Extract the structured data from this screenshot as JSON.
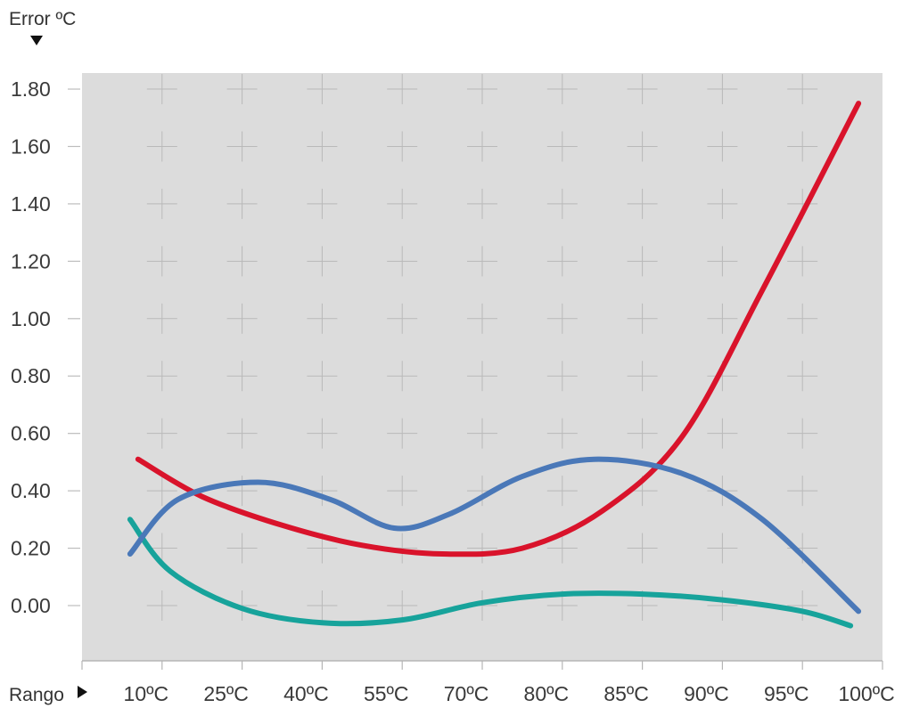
{
  "chart_data": {
    "type": "line",
    "title": "",
    "ylabel": "Error ºC",
    "xlabel": "Rango",
    "categories": [
      "10ºC",
      "25ºC",
      "40ºC",
      "55ºC",
      "70ºC",
      "80ºC",
      "85ºC",
      "90ºC",
      "95ºC",
      "100ºC"
    ],
    "yticks": [
      "1.80",
      "1.60",
      "1.40",
      "1.20",
      "1.00",
      "0.80",
      "0.60",
      "0.40",
      "0.20",
      "0.00"
    ],
    "ylim": [
      -0.2,
      1.85
    ],
    "grid": true,
    "series": [
      {
        "color": "#d9132b",
        "points": [
          [
            0.7,
            0.51
          ],
          [
            1.5,
            0.38
          ],
          [
            2.5,
            0.28
          ],
          [
            3.5,
            0.21
          ],
          [
            4.5,
            0.18
          ],
          [
            5.5,
            0.2
          ],
          [
            6.5,
            0.33
          ],
          [
            7.5,
            0.59
          ],
          [
            8.5,
            1.1
          ],
          [
            9.7,
            1.75
          ]
        ]
      },
      {
        "color": "#4a78b8",
        "points": [
          [
            0.6,
            0.18
          ],
          [
            1.2,
            0.37
          ],
          [
            2.2,
            0.43
          ],
          [
            3.1,
            0.37
          ],
          [
            3.9,
            0.27
          ],
          [
            4.6,
            0.32
          ],
          [
            5.5,
            0.45
          ],
          [
            6.4,
            0.51
          ],
          [
            7.5,
            0.46
          ],
          [
            8.5,
            0.3
          ],
          [
            9.7,
            -0.02
          ]
        ]
      },
      {
        "color": "#17a39b",
        "points": [
          [
            0.6,
            0.3
          ],
          [
            1.1,
            0.12
          ],
          [
            2.0,
            -0.01
          ],
          [
            3.0,
            -0.06
          ],
          [
            4.0,
            -0.05
          ],
          [
            5.0,
            0.01
          ],
          [
            6.0,
            0.04
          ],
          [
            7.0,
            0.04
          ],
          [
            8.0,
            0.02
          ],
          [
            9.0,
            -0.02
          ],
          [
            9.6,
            -0.07
          ]
        ]
      }
    ]
  }
}
